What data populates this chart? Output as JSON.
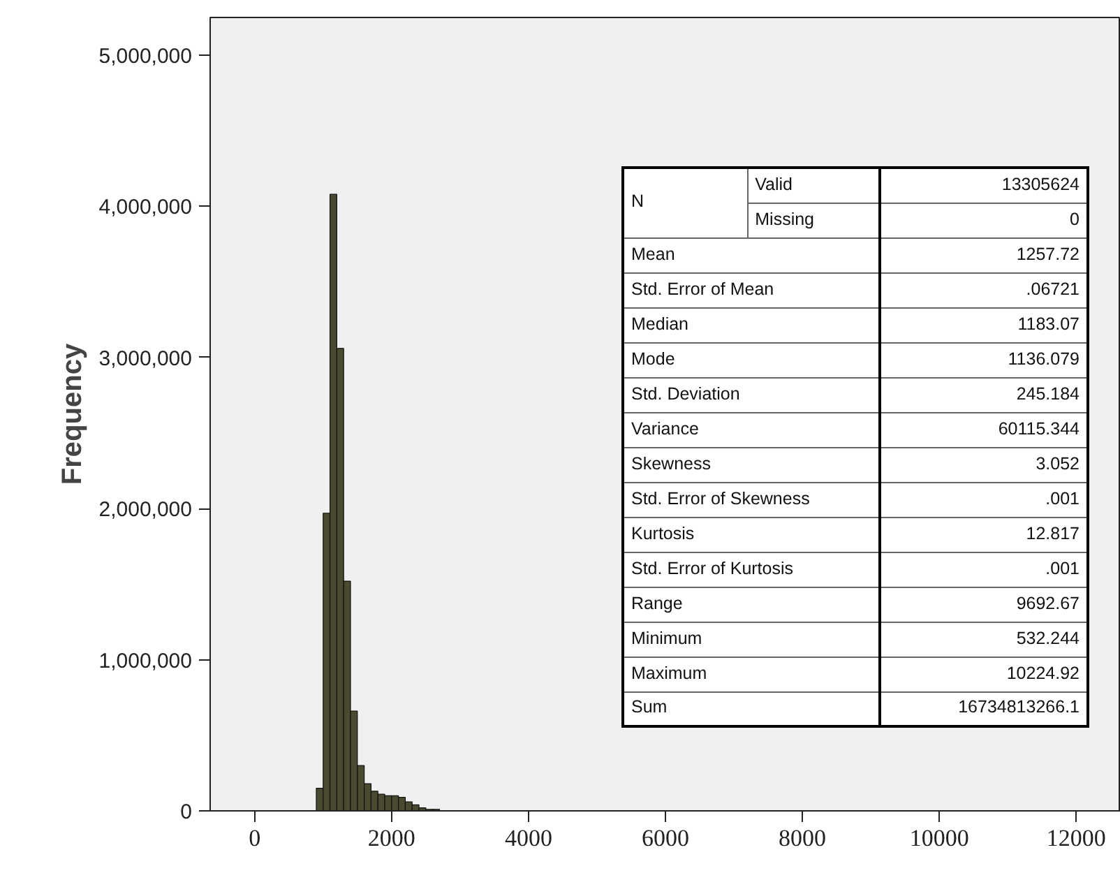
{
  "chart_data": {
    "type": "histogram",
    "ylabel": "Frequency",
    "bins": [
      900,
      1000,
      1100,
      1200,
      1300,
      1400,
      1500,
      1600,
      1700,
      1800,
      1900,
      2000,
      2100,
      2200,
      2300,
      2400,
      2500,
      2600,
      2700
    ],
    "values": [
      150000,
      1970000,
      4080000,
      3060000,
      1520000,
      660000,
      300000,
      180000,
      130000,
      110000,
      100000,
      100000,
      90000,
      60000,
      40000,
      20000,
      10000,
      10000
    ],
    "color": "#4a4a30",
    "xlim": [
      -650,
      12650
    ],
    "xticks": [
      0,
      2000,
      4000,
      6000,
      8000,
      10000,
      12000
    ],
    "ylim": [
      0,
      5250000
    ],
    "yticks": [
      {
        "value": 0,
        "label": "0"
      },
      {
        "value": 1000000,
        "label": "1,000,000"
      },
      {
        "value": 2000000,
        "label": "2,000,000"
      },
      {
        "value": 3000000,
        "label": "3,000,000"
      },
      {
        "value": 4000000,
        "label": "4,000,000"
      },
      {
        "value": 5000000,
        "label": "5,000,000"
      }
    ],
    "grid": false,
    "annotations": [
      "N",
      "Valid",
      "13305624",
      "Missing",
      "0",
      "Mean",
      "1257.72",
      "Std. Error of Mean",
      ".06721",
      "Median",
      "1183.07",
      "Mode",
      "1136.079",
      "Std. Deviation",
      "245.184",
      "Variance",
      "60115.344",
      "Skewness",
      "3.052",
      "Std. Error of Skewness",
      ".001",
      "Kurtosis",
      "12.817",
      "Std. Error of Kurtosis",
      ".001",
      "Range",
      "9692.67",
      "Minimum",
      "532.244",
      "Maximum",
      "10224.92",
      "Sum",
      "16734813266.1"
    ]
  }
}
